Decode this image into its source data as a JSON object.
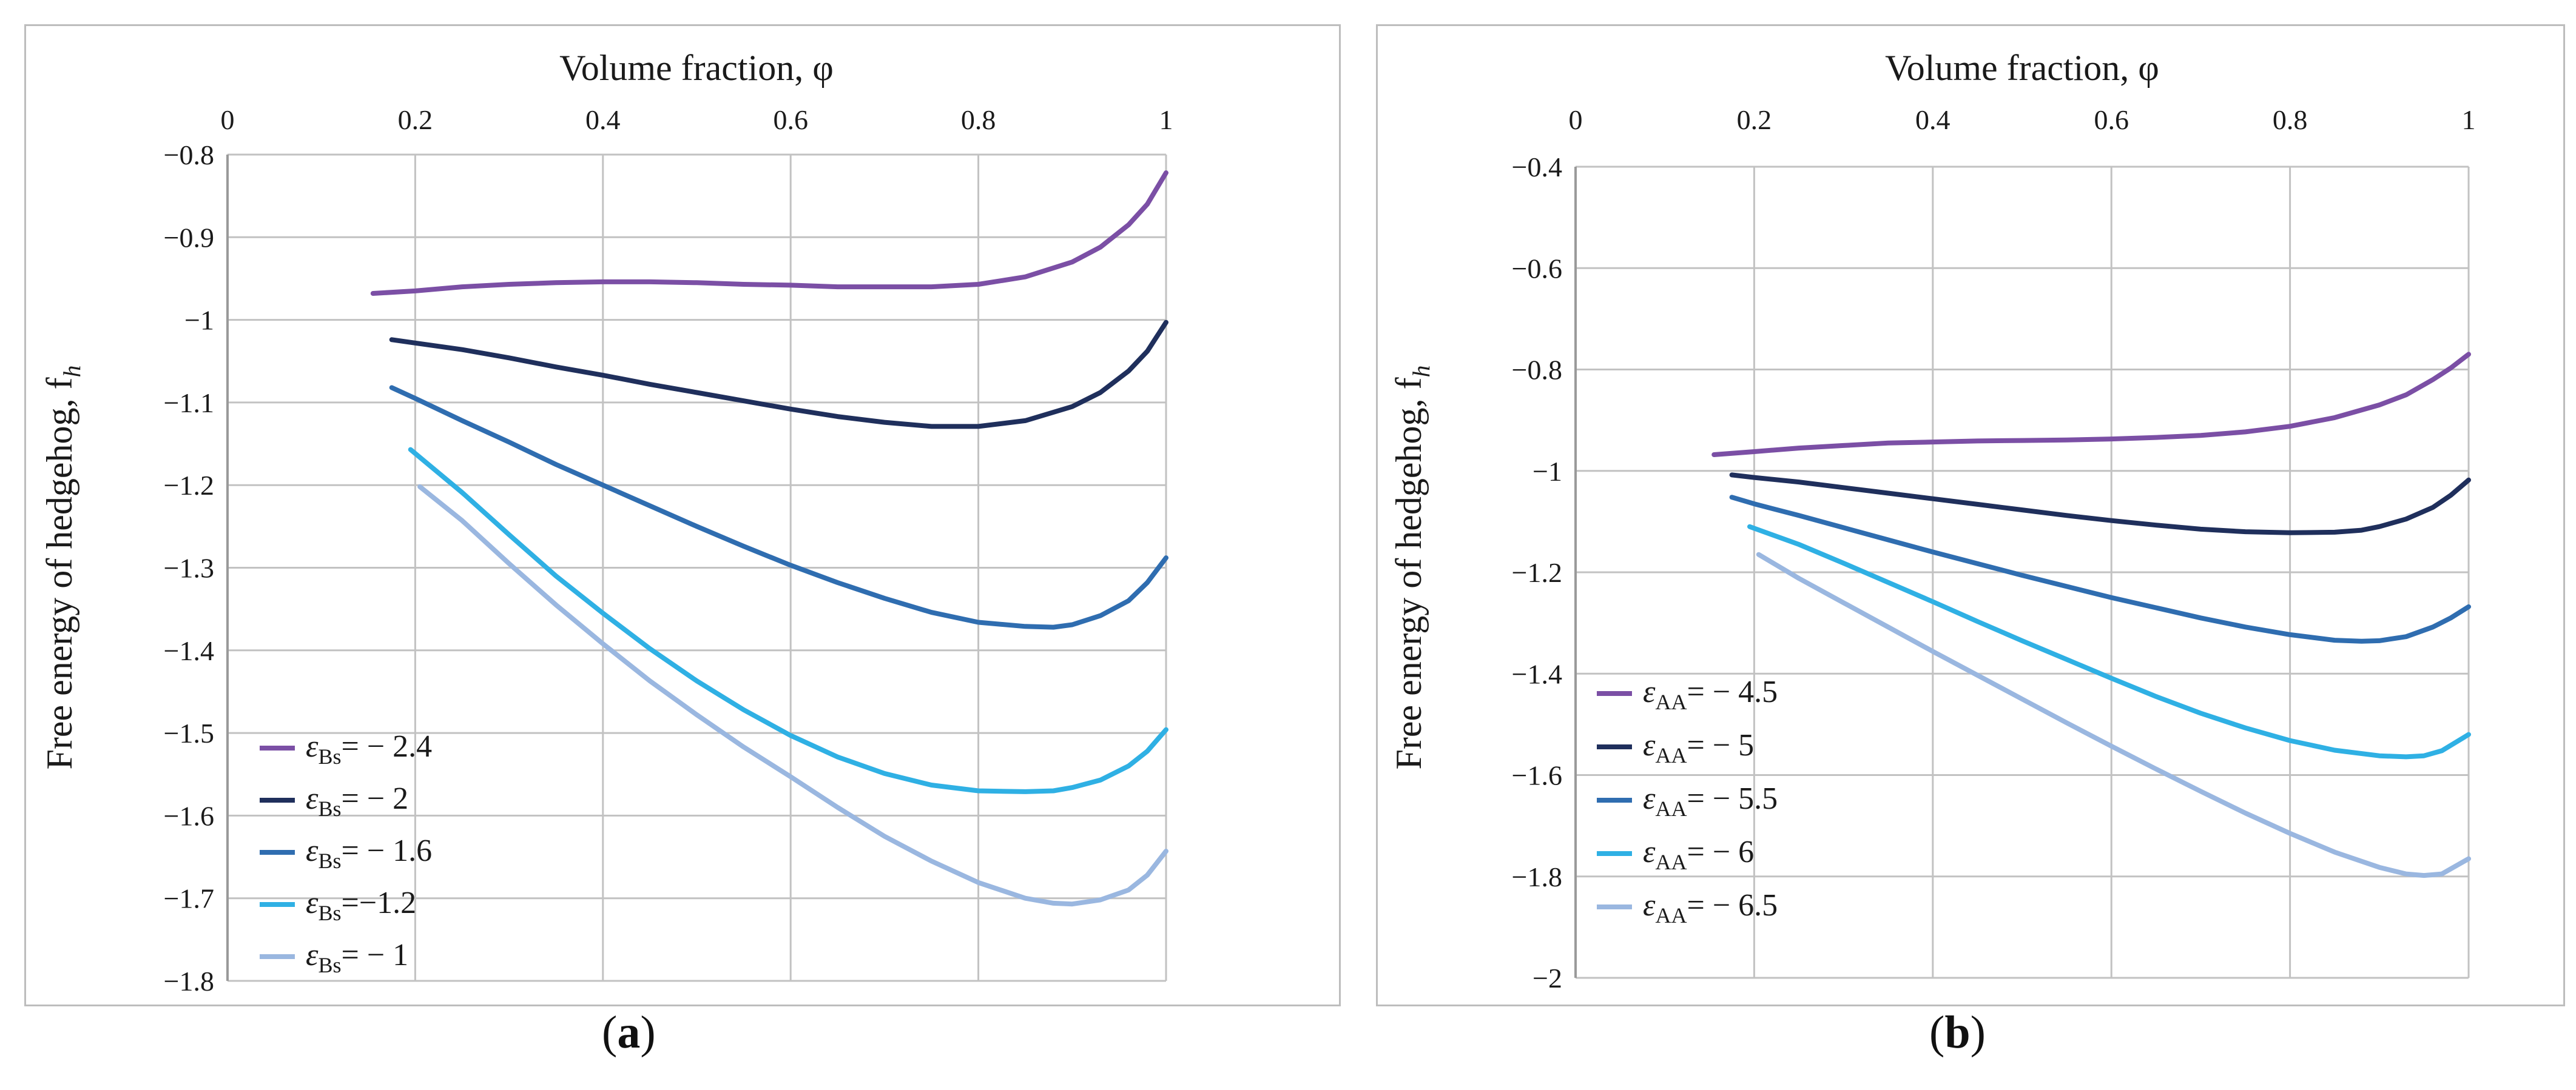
{
  "chart_data": [
    {
      "type": "line",
      "panel_label": "a",
      "title": "",
      "xlabel": "Volume fraction, φ",
      "ylabel": "Free energy of hedgehog, f",
      "ylabel_sub": "h",
      "xlim": [
        0,
        1
      ],
      "ylim": [
        -1.8,
        -0.8
      ],
      "x_ticks": [
        0,
        0.2,
        0.4,
        0.6,
        0.8,
        1
      ],
      "x_tick_labels": [
        "0",
        "0.2",
        "0.4",
        "0.6",
        "0.8",
        "1"
      ],
      "y_ticks": [
        -0.8,
        -0.9,
        -1.0,
        -1.1,
        -1.2,
        -1.3,
        -1.4,
        -1.5,
        -1.6,
        -1.7,
        -1.8
      ],
      "y_tick_labels": [
        "−0.8",
        "−0.9",
        "−1",
        "−1.1",
        "−1.2",
        "−1.3",
        "−1.4",
        "−1.5",
        "−1.6",
        "−1.7",
        "−1.8"
      ],
      "legend_position": "bottom-left",
      "series": [
        {
          "name_sym": "ε",
          "name_sub": "Bs",
          "name_val": "= − 2.4",
          "color": "#7b4fa5",
          "x": [
            0.155,
            0.2,
            0.25,
            0.3,
            0.35,
            0.4,
            0.45,
            0.5,
            0.55,
            0.6,
            0.65,
            0.7,
            0.75,
            0.8,
            0.85,
            0.9,
            0.93,
            0.96,
            0.98,
            1.0
          ],
          "y": [
            -0.968,
            -0.965,
            -0.96,
            -0.957,
            -0.955,
            -0.954,
            -0.954,
            -0.955,
            -0.957,
            -0.958,
            -0.96,
            -0.96,
            -0.96,
            -0.957,
            -0.948,
            -0.93,
            -0.912,
            -0.885,
            -0.86,
            -0.822
          ]
        },
        {
          "name_sym": "ε",
          "name_sub": "Bs",
          "name_val": "= − 2",
          "color": "#1f2f5c",
          "x": [
            0.175,
            0.2,
            0.25,
            0.3,
            0.35,
            0.4,
            0.45,
            0.5,
            0.55,
            0.6,
            0.65,
            0.7,
            0.75,
            0.8,
            0.85,
            0.9,
            0.93,
            0.96,
            0.98,
            1.0
          ],
          "y": [
            -1.024,
            -1.028,
            -1.036,
            -1.046,
            -1.057,
            -1.067,
            -1.078,
            -1.088,
            -1.098,
            -1.108,
            -1.117,
            -1.124,
            -1.129,
            -1.129,
            -1.122,
            -1.105,
            -1.088,
            -1.062,
            -1.038,
            -1.003
          ]
        },
        {
          "name_sym": "ε",
          "name_sub": "Bs",
          "name_val": "= − 1.6",
          "color": "#2f6db0",
          "x": [
            0.175,
            0.2,
            0.25,
            0.3,
            0.35,
            0.4,
            0.45,
            0.5,
            0.55,
            0.6,
            0.65,
            0.7,
            0.75,
            0.8,
            0.85,
            0.88,
            0.9,
            0.93,
            0.96,
            0.98,
            1.0
          ],
          "y": [
            -1.082,
            -1.095,
            -1.122,
            -1.148,
            -1.175,
            -1.2,
            -1.225,
            -1.25,
            -1.274,
            -1.297,
            -1.318,
            -1.337,
            -1.354,
            -1.366,
            -1.371,
            -1.372,
            -1.369,
            -1.358,
            -1.34,
            -1.318,
            -1.288
          ]
        },
        {
          "name_sym": "ε",
          "name_sub": "Bs",
          "name_val": "=−1.2",
          "color": "#2fb0e4",
          "x": [
            0.195,
            0.25,
            0.3,
            0.35,
            0.4,
            0.45,
            0.5,
            0.55,
            0.6,
            0.65,
            0.7,
            0.75,
            0.8,
            0.85,
            0.88,
            0.9,
            0.93,
            0.96,
            0.98,
            1.0
          ],
          "y": [
            -1.157,
            -1.209,
            -1.26,
            -1.31,
            -1.355,
            -1.398,
            -1.437,
            -1.472,
            -1.503,
            -1.529,
            -1.549,
            -1.563,
            -1.57,
            -1.571,
            -1.57,
            -1.566,
            -1.557,
            -1.54,
            -1.522,
            -1.496
          ]
        },
        {
          "name_sym": "ε",
          "name_sub": "Bs",
          "name_val": "= − 1",
          "color": "#9ab7e0",
          "x": [
            0.205,
            0.25,
            0.3,
            0.35,
            0.4,
            0.45,
            0.5,
            0.55,
            0.6,
            0.65,
            0.7,
            0.75,
            0.8,
            0.85,
            0.88,
            0.9,
            0.93,
            0.96,
            0.98,
            1.0
          ],
          "y": [
            -1.202,
            -1.243,
            -1.295,
            -1.345,
            -1.392,
            -1.437,
            -1.478,
            -1.517,
            -1.553,
            -1.59,
            -1.625,
            -1.655,
            -1.681,
            -1.7,
            -1.706,
            -1.707,
            -1.702,
            -1.69,
            -1.672,
            -1.643
          ]
        }
      ]
    },
    {
      "type": "line",
      "panel_label": "b",
      "title": "",
      "xlabel": "Volume fraction, φ",
      "ylabel": "Free energy of hedgehog, f",
      "ylabel_sub": "h",
      "xlim": [
        0,
        1
      ],
      "ylim": [
        -2.0,
        -0.4
      ],
      "x_ticks": [
        0,
        0.2,
        0.4,
        0.6,
        0.8,
        1
      ],
      "x_tick_labels": [
        "0",
        "0.2",
        "0.4",
        "0.6",
        "0.8",
        "1"
      ],
      "y_ticks": [
        -0.4,
        -0.6,
        -0.8,
        -1.0,
        -1.2,
        -1.4,
        -1.6,
        -1.8,
        -2.0
      ],
      "y_tick_labels": [
        "−0.4",
        "−0.6",
        "−0.8",
        "−1",
        "−1.2",
        "−1.4",
        "−1.6",
        "−1.8",
        "−2"
      ],
      "legend_position": "bottom-left",
      "series": [
        {
          "name_sym": "ε",
          "name_sub": "AA",
          "name_val": "= − 4.5",
          "color": "#7b4fa5",
          "x": [
            0.155,
            0.2,
            0.25,
            0.3,
            0.35,
            0.4,
            0.45,
            0.5,
            0.55,
            0.6,
            0.65,
            0.7,
            0.75,
            0.8,
            0.85,
            0.9,
            0.93,
            0.96,
            0.98,
            1.0
          ],
          "y": [
            -0.968,
            -0.962,
            -0.955,
            -0.95,
            -0.945,
            -0.943,
            -0.941,
            -0.94,
            -0.939,
            -0.937,
            -0.934,
            -0.93,
            -0.923,
            -0.912,
            -0.895,
            -0.87,
            -0.85,
            -0.82,
            -0.797,
            -0.77
          ]
        },
        {
          "name_sym": "ε",
          "name_sub": "AA",
          "name_val": "= − 5",
          "color": "#1f2f5c",
          "x": [
            0.175,
            0.2,
            0.25,
            0.3,
            0.35,
            0.4,
            0.45,
            0.5,
            0.55,
            0.6,
            0.65,
            0.7,
            0.75,
            0.8,
            0.85,
            0.88,
            0.9,
            0.93,
            0.96,
            0.98,
            1.0
          ],
          "y": [
            -1.008,
            -1.013,
            -1.022,
            -1.033,
            -1.044,
            -1.055,
            -1.066,
            -1.077,
            -1.088,
            -1.098,
            -1.107,
            -1.115,
            -1.12,
            -1.122,
            -1.121,
            -1.117,
            -1.11,
            -1.095,
            -1.072,
            -1.048,
            -1.018
          ]
        },
        {
          "name_sym": "ε",
          "name_sub": "AA",
          "name_val": "= − 5.5",
          "color": "#2f6db0",
          "x": [
            0.175,
            0.2,
            0.25,
            0.3,
            0.35,
            0.4,
            0.45,
            0.5,
            0.55,
            0.6,
            0.65,
            0.7,
            0.75,
            0.8,
            0.85,
            0.88,
            0.9,
            0.93,
            0.96,
            0.98,
            1.0
          ],
          "y": [
            -1.052,
            -1.065,
            -1.088,
            -1.112,
            -1.136,
            -1.16,
            -1.183,
            -1.206,
            -1.228,
            -1.25,
            -1.27,
            -1.29,
            -1.308,
            -1.323,
            -1.334,
            -1.336,
            -1.335,
            -1.327,
            -1.308,
            -1.29,
            -1.268
          ]
        },
        {
          "name_sym": "ε",
          "name_sub": "AA",
          "name_val": "= − 6",
          "color": "#2fb0e4",
          "x": [
            0.195,
            0.25,
            0.3,
            0.35,
            0.4,
            0.45,
            0.5,
            0.55,
            0.6,
            0.65,
            0.7,
            0.75,
            0.8,
            0.85,
            0.9,
            0.93,
            0.95,
            0.97,
            1.0
          ],
          "y": [
            -1.11,
            -1.145,
            -1.182,
            -1.22,
            -1.258,
            -1.297,
            -1.335,
            -1.372,
            -1.409,
            -1.445,
            -1.478,
            -1.507,
            -1.532,
            -1.551,
            -1.562,
            -1.564,
            -1.562,
            -1.552,
            -1.52
          ]
        },
        {
          "name_sym": "ε",
          "name_sub": "AA",
          "name_val": "= − 6.5",
          "color": "#9ab7e0",
          "x": [
            0.205,
            0.25,
            0.3,
            0.35,
            0.4,
            0.45,
            0.5,
            0.55,
            0.6,
            0.65,
            0.7,
            0.75,
            0.8,
            0.85,
            0.9,
            0.93,
            0.95,
            0.97,
            1.0
          ],
          "y": [
            -1.165,
            -1.212,
            -1.26,
            -1.308,
            -1.356,
            -1.403,
            -1.45,
            -1.497,
            -1.543,
            -1.588,
            -1.632,
            -1.675,
            -1.715,
            -1.752,
            -1.782,
            -1.795,
            -1.798,
            -1.795,
            -1.765
          ]
        }
      ]
    }
  ],
  "captions": [
    {
      "open": "(",
      "label": "a",
      "close": ")"
    },
    {
      "open": "(",
      "label": "b",
      "close": ")"
    }
  ]
}
